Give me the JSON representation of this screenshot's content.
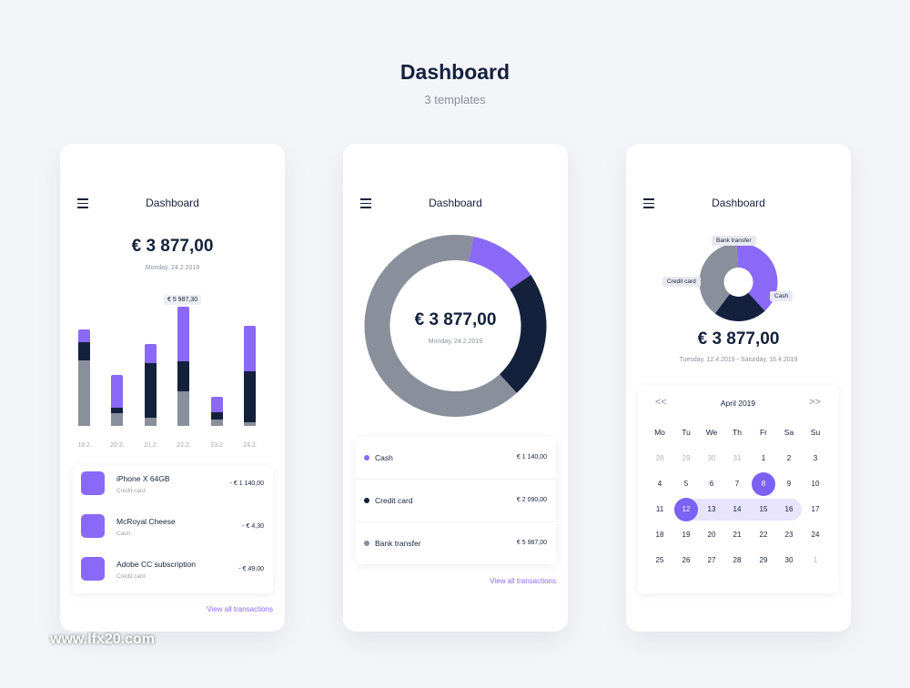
{
  "header": {
    "title": "Dashboard",
    "subtitle": "3 templates"
  },
  "colors": {
    "purple": "#8b69f7",
    "navy": "#14213d",
    "gray": "#8a8f9c",
    "light_purple": "#e7e4fc"
  },
  "card1": {
    "title": "Dashboard",
    "amount": "€ 3 877,00",
    "date": "Monday, 24.2.2019",
    "tooltip": "€ 5 987,30",
    "chart_data": {
      "type": "bar",
      "stacked": true,
      "categories": [
        "19.2.",
        "20.2.",
        "21.2.",
        "22.2.",
        "23.2.",
        "24.2."
      ],
      "series": [
        {
          "color": "#8a8f9c",
          "values": [
            72,
            14,
            9,
            38,
            7,
            4
          ]
        },
        {
          "color": "#14213d",
          "values": [
            20,
            6,
            60,
            33,
            8,
            56
          ]
        },
        {
          "color": "#8b69f7",
          "values": [
            14,
            36,
            21,
            60,
            17,
            50
          ]
        }
      ]
    },
    "transactions": [
      {
        "name": "iPhone X 64GB",
        "method": "Credit card",
        "amount": "- € 1 140,00"
      },
      {
        "name": "McRoyal Cheese",
        "method": "Cash",
        "amount": "- € 4,30"
      },
      {
        "name": "Adobe CC subscription",
        "method": "Credit card",
        "amount": "- € 49,00"
      }
    ],
    "link": "View all transactions"
  },
  "card2": {
    "title": "Dashboard",
    "amount": "€ 3 877,00",
    "date": "Monday, 24.2.2019",
    "chart_data": {
      "type": "pie",
      "donut": true,
      "slices": [
        {
          "label": "Cash",
          "value": 1140,
          "color": "#8b69f7"
        },
        {
          "label": "Credit card",
          "value": 2090,
          "color": "#14213d"
        },
        {
          "label": "Bank transfer",
          "value": 5987,
          "color": "#8a8f9c"
        }
      ]
    },
    "legend": [
      {
        "label": "Cash",
        "value": "€ 1 140,00",
        "color": "#8b69f7"
      },
      {
        "label": "Credit card",
        "value": "€ 2 090,00",
        "color": "#14213d"
      },
      {
        "label": "Bank transfer",
        "value": "€ 5 987,00",
        "color": "#8a8f9c"
      }
    ],
    "link": "View all transactions"
  },
  "card3": {
    "title": "Dashboard",
    "amount": "€ 3 877,00",
    "date": "Tuesday, 12.4.2019 - Saturday, 16.4.2019",
    "pie_labels": {
      "bank": "Bank transfer",
      "credit": "Credit card",
      "cash": "Cash"
    },
    "chart_data": {
      "type": "pie",
      "donut": true,
      "slices": [
        {
          "label": "Bank transfer",
          "value": 39,
          "color": "#8b69f7"
        },
        {
          "label": "Cash",
          "value": 22,
          "color": "#14213d"
        },
        {
          "label": "Credit card",
          "value": 39,
          "color": "#8a8f9c"
        }
      ]
    },
    "calendar": {
      "month": "April 2019",
      "prev": "<<",
      "next": ">>",
      "weekdays": [
        "Mo",
        "Tu",
        "We",
        "Th",
        "Fr",
        "Sa",
        "Su"
      ],
      "days": [
        "28",
        "29",
        "30",
        "31",
        "1",
        "2",
        "3",
        "4",
        "5",
        "6",
        "7",
        "8",
        "9",
        "10",
        "11",
        "12",
        "13",
        "14",
        "15",
        "16",
        "17",
        "18",
        "19",
        "20",
        "21",
        "22",
        "23",
        "24",
        "25",
        "26",
        "27",
        "28",
        "29",
        "30",
        "1"
      ],
      "muted": [
        0,
        1,
        2,
        3,
        34
      ],
      "selected": [
        11,
        15
      ]
    }
  },
  "watermark": "www.lfx20.com"
}
